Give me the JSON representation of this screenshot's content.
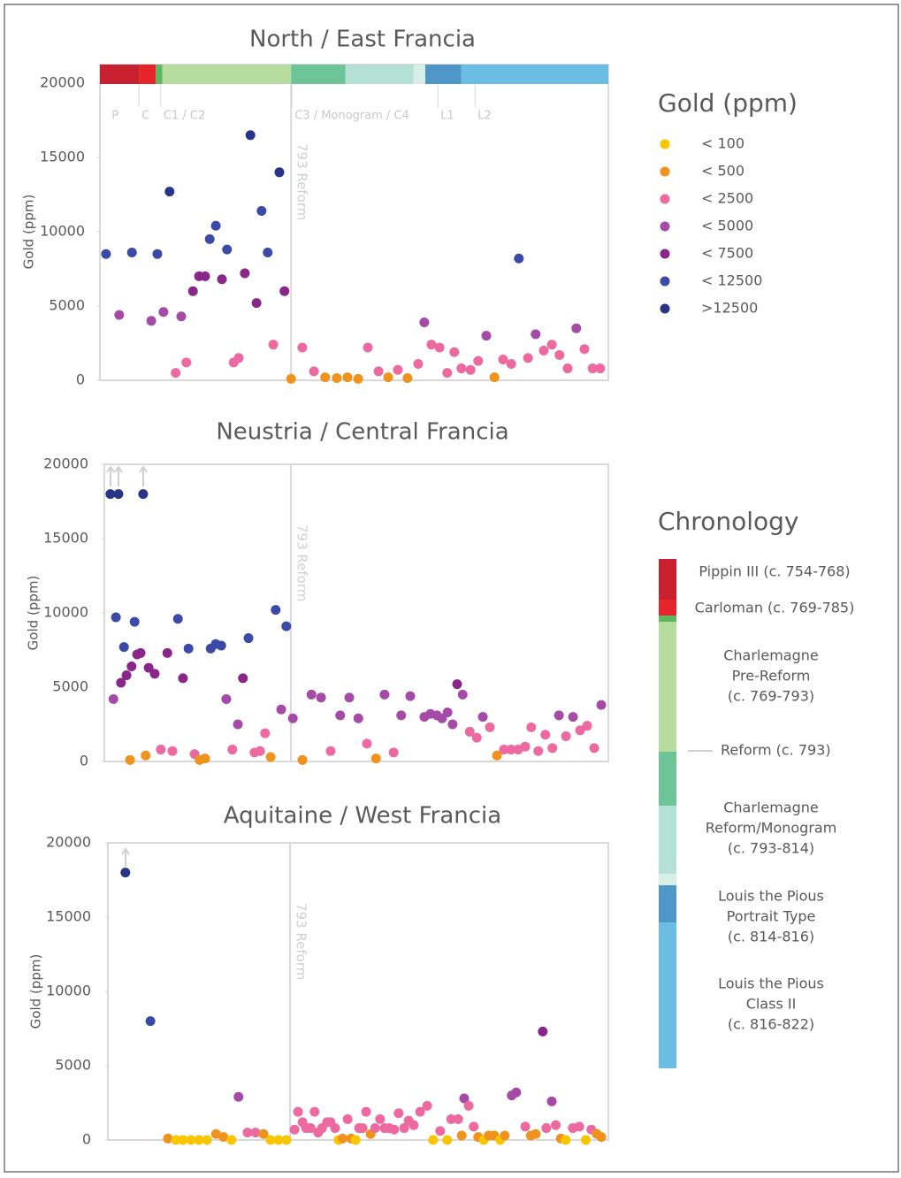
{
  "chart_data": [
    {
      "type": "scatter",
      "title": "North / East Francia",
      "y_label": "Gold (ppm)",
      "reform_label": "793 Reform",
      "reform_x": 37.6,
      "xlim": [
        0,
        100
      ],
      "ylim": [
        0,
        20000
      ],
      "yticks": [
        0,
        5000,
        10000,
        15000,
        20000
      ],
      "periods": [
        {
          "start": 0,
          "end": 7.8,
          "color": "#c8202f"
        },
        {
          "start": 7.8,
          "end": 11.0,
          "color": "#e8242b"
        },
        {
          "start": 11.0,
          "end": 12.3,
          "color": "#5cb85c"
        },
        {
          "start": 12.3,
          "end": 37.6,
          "color": "#b7dca0"
        },
        {
          "start": 37.6,
          "end": 48.3,
          "color": "#6cc497"
        },
        {
          "start": 48.3,
          "end": 61.7,
          "color": "#b5e0d5"
        },
        {
          "start": 61.7,
          "end": 64.0,
          "color": "#d8efe8"
        },
        {
          "start": 64.0,
          "end": 71.1,
          "color": "#4f97c9"
        },
        {
          "start": 71.1,
          "end": 100,
          "color": "#6bbde3"
        }
      ],
      "period_labels": [
        {
          "label": "P",
          "x": 2.3
        },
        {
          "label": "C",
          "x": 8.2
        },
        {
          "label": "C1 / C2",
          "x": 12.5
        },
        {
          "label": "C3 / Monogram / C4",
          "x": 38.3
        },
        {
          "label": "L1",
          "x": 67.0
        },
        {
          "label": "L2",
          "x": 74.3
        }
      ],
      "x": [
        1.2,
        3.8,
        6.3,
        10.1,
        11.3,
        12.5,
        13.7,
        14.9,
        16.0,
        17.0,
        18.3,
        19.5,
        20.7,
        21.6,
        22.8,
        24.0,
        25.0,
        26.3,
        27.3,
        28.5,
        29.6,
        30.8,
        31.8,
        33.0,
        34.1,
        35.3,
        36.3,
        37.6,
        39.8,
        42.1,
        44.3,
        46.6,
        48.7,
        50.8,
        52.7,
        54.8,
        56.7,
        58.6,
        60.5,
        62.6,
        63.8,
        65.2,
        66.8,
        68.3,
        69.7,
        71.1,
        72.9,
        74.4,
        76.0,
        77.6,
        79.3,
        80.9,
        82.4,
        84.2,
        85.7,
        87.3,
        88.9,
        90.4,
        92.0,
        93.7,
        95.3,
        96.9,
        98.4
      ],
      "values": [
        8500,
        4400,
        8600,
        4000,
        8500,
        4600,
        12700,
        500,
        4300,
        1200,
        6000,
        7000,
        7000,
        9500,
        10400,
        6800,
        8800,
        1200,
        1500,
        7200,
        16500,
        5200,
        11400,
        8600,
        2400,
        14000,
        6000,
        100,
        2200,
        600,
        200,
        150,
        200,
        100,
        2200,
        600,
        200,
        700,
        150,
        1100,
        3900,
        2400,
        2200,
        500,
        1900,
        800,
        700,
        1300,
        3000,
        200,
        1400,
        1100,
        8200,
        1500,
        3100,
        2000,
        2400,
        1700,
        800,
        3500,
        2100,
        800,
        800
      ]
    },
    {
      "type": "scatter",
      "title": "Neustria / Central Francia",
      "y_label": "Gold (ppm)",
      "reform_label": "793 Reform",
      "reform_x": 37.0,
      "xlim": [
        0,
        100
      ],
      "ylim": [
        0,
        20000
      ],
      "yticks": [
        0,
        5000,
        10000,
        15000,
        20000
      ],
      "x": [
        1.2,
        2.8,
        7.7,
        1.8,
        2.3,
        3.3,
        3.9,
        4.4,
        5.1,
        5.4,
        6.0,
        6.5,
        7.2,
        8.2,
        8.8,
        10.0,
        11.2,
        12.5,
        13.5,
        14.6,
        15.6,
        16.7,
        17.9,
        18.9,
        20.0,
        21.1,
        22.1,
        23.2,
        24.2,
        25.4,
        26.5,
        27.5,
        28.6,
        29.8,
        30.9,
        31.9,
        33.0,
        34.0,
        35.1,
        36.1,
        37.4,
        39.3,
        41.1,
        43.0,
        44.9,
        46.8,
        48.6,
        50.4,
        52.1,
        53.9,
        55.6,
        57.4,
        58.9,
        60.7,
        63.5,
        64.7,
        66.0,
        67.0,
        68.1,
        69.1,
        70.0,
        71.1,
        72.5,
        73.9,
        75.1,
        76.5,
        77.9,
        79.3,
        80.7,
        82.1,
        83.5,
        84.7,
        86.1,
        87.5,
        88.9,
        90.2,
        91.6,
        93.0,
        94.4,
        95.8,
        97.2,
        98.6
      ],
      "values": [
        18000,
        18000,
        18000,
        4200,
        9700,
        5300,
        7700,
        5800,
        100,
        6400,
        9400,
        7200,
        7300,
        400,
        6300,
        5900,
        800,
        7300,
        700,
        9600,
        5600,
        7600,
        500,
        100,
        200,
        7600,
        7900,
        7800,
        4200,
        800,
        2500,
        5600,
        8300,
        600,
        700,
        1900,
        300,
        10200,
        3500,
        9100,
        2900,
        100,
        4500,
        4300,
        700,
        3100,
        4300,
        2900,
        1200,
        200,
        4500,
        600,
        3100,
        4400,
        3000,
        3200,
        3100,
        2900,
        3300,
        2500,
        5200,
        4500,
        2000,
        1600,
        3000,
        2300,
        400,
        800,
        800,
        800,
        1000,
        2300,
        700,
        1800,
        900,
        3100,
        1700,
        3000,
        2100,
        2400,
        900,
        3800
      ]
    },
    {
      "type": "scatter",
      "title": "Aquitaine / West Francia",
      "y_label": "Gold (ppm)",
      "reform_label": "793 Reform",
      "reform_x": 36.4,
      "xlim": [
        0,
        100
      ],
      "ylim": [
        0,
        20000
      ],
      "yticks": [
        0,
        5000,
        10000,
        15000,
        20000
      ],
      "x": [
        3.5,
        8.5,
        12.0,
        13.6,
        15.0,
        16.6,
        18.2,
        19.8,
        21.6,
        23.1,
        24.7,
        26.1,
        27.9,
        29.5,
        31.1,
        32.5,
        34.1,
        35.7,
        37.3,
        38.0,
        38.9,
        39.6,
        40.5,
        41.3,
        42.0,
        42.8,
        43.8,
        44.5,
        45.4,
        46.1,
        46.9,
        47.9,
        48.6,
        49.5,
        50.2,
        50.9,
        51.6,
        52.5,
        53.4,
        54.4,
        55.3,
        56.2,
        57.2,
        58.1,
        59.2,
        60.1,
        61.1,
        62.4,
        63.8,
        65.0,
        66.4,
        67.8,
        68.6,
        70.0,
        70.7,
        71.2,
        72.1,
        73.1,
        74.0,
        75.1,
        76.1,
        77.2,
        78.4,
        79.3,
        80.7,
        81.6,
        83.4,
        84.5,
        85.5,
        86.9,
        87.6,
        88.7,
        89.5,
        90.5,
        91.5,
        92.9,
        94.2,
        95.5,
        96.6,
        97.7,
        98.6
      ],
      "values": [
        18000,
        8000,
        100,
        0,
        0,
        0,
        0,
        0,
        400,
        200,
        0,
        2900,
        500,
        500,
        400,
        0,
        0,
        0,
        700,
        1900,
        1200,
        800,
        800,
        1900,
        500,
        800,
        1200,
        1200,
        800,
        0,
        100,
        1400,
        100,
        0,
        800,
        800,
        1900,
        400,
        800,
        1400,
        800,
        800,
        700,
        1800,
        800,
        1300,
        1000,
        1900,
        2300,
        0,
        600,
        0,
        1400,
        1400,
        300,
        2800,
        2300,
        900,
        200,
        0,
        300,
        300,
        0,
        300,
        3000,
        3200,
        900,
        300,
        400,
        7300,
        800,
        2600,
        1000,
        100,
        0,
        800,
        900,
        0,
        700,
        400,
        200
      ]
    }
  ],
  "gold_legend": {
    "title": "Gold (ppm)",
    "bins": [
      {
        "label": "< 100",
        "max": 100,
        "color": "#f7c600"
      },
      {
        "label": "< 500",
        "max": 500,
        "color": "#f0921e"
      },
      {
        "label": "< 2500",
        "max": 2500,
        "color": "#ec6aa0"
      },
      {
        "label": "< 5000",
        "max": 5000,
        "color": "#a64aa8"
      },
      {
        "label": "< 7500",
        "max": 7500,
        "color": "#8a2589"
      },
      {
        "label": "< 12500",
        "max": 12500,
        "color": "#3b4aa6"
      },
      {
        "label": ">12500",
        "min": 12500,
        "color": "#283587"
      }
    ]
  },
  "chronology_legend": {
    "title": "Chronology",
    "colors": [
      "#c8202f",
      "#e8242b",
      "#5cb85c",
      "#b7dca0",
      "#6cc497",
      "#b5e0d5",
      "#d8efe8",
      "#4f97c9",
      "#6bbde3"
    ],
    "entries": [
      [
        "Pippin III (c. 754-768)"
      ],
      [
        "Carloman (c. 769-785)"
      ],
      [
        "Charlemagne",
        "Pre-Reform",
        "(c. 769-793)"
      ],
      [
        "Reform (c. 793)"
      ],
      [
        "Charlemagne",
        "Reform/Monogram",
        "(c. 793-814)"
      ],
      [
        "Louis the Pious",
        "Portrait Type",
        "(c. 814-816)"
      ],
      [
        "Louis the Pious",
        "Class II",
        "(c. 816-822)"
      ]
    ]
  }
}
